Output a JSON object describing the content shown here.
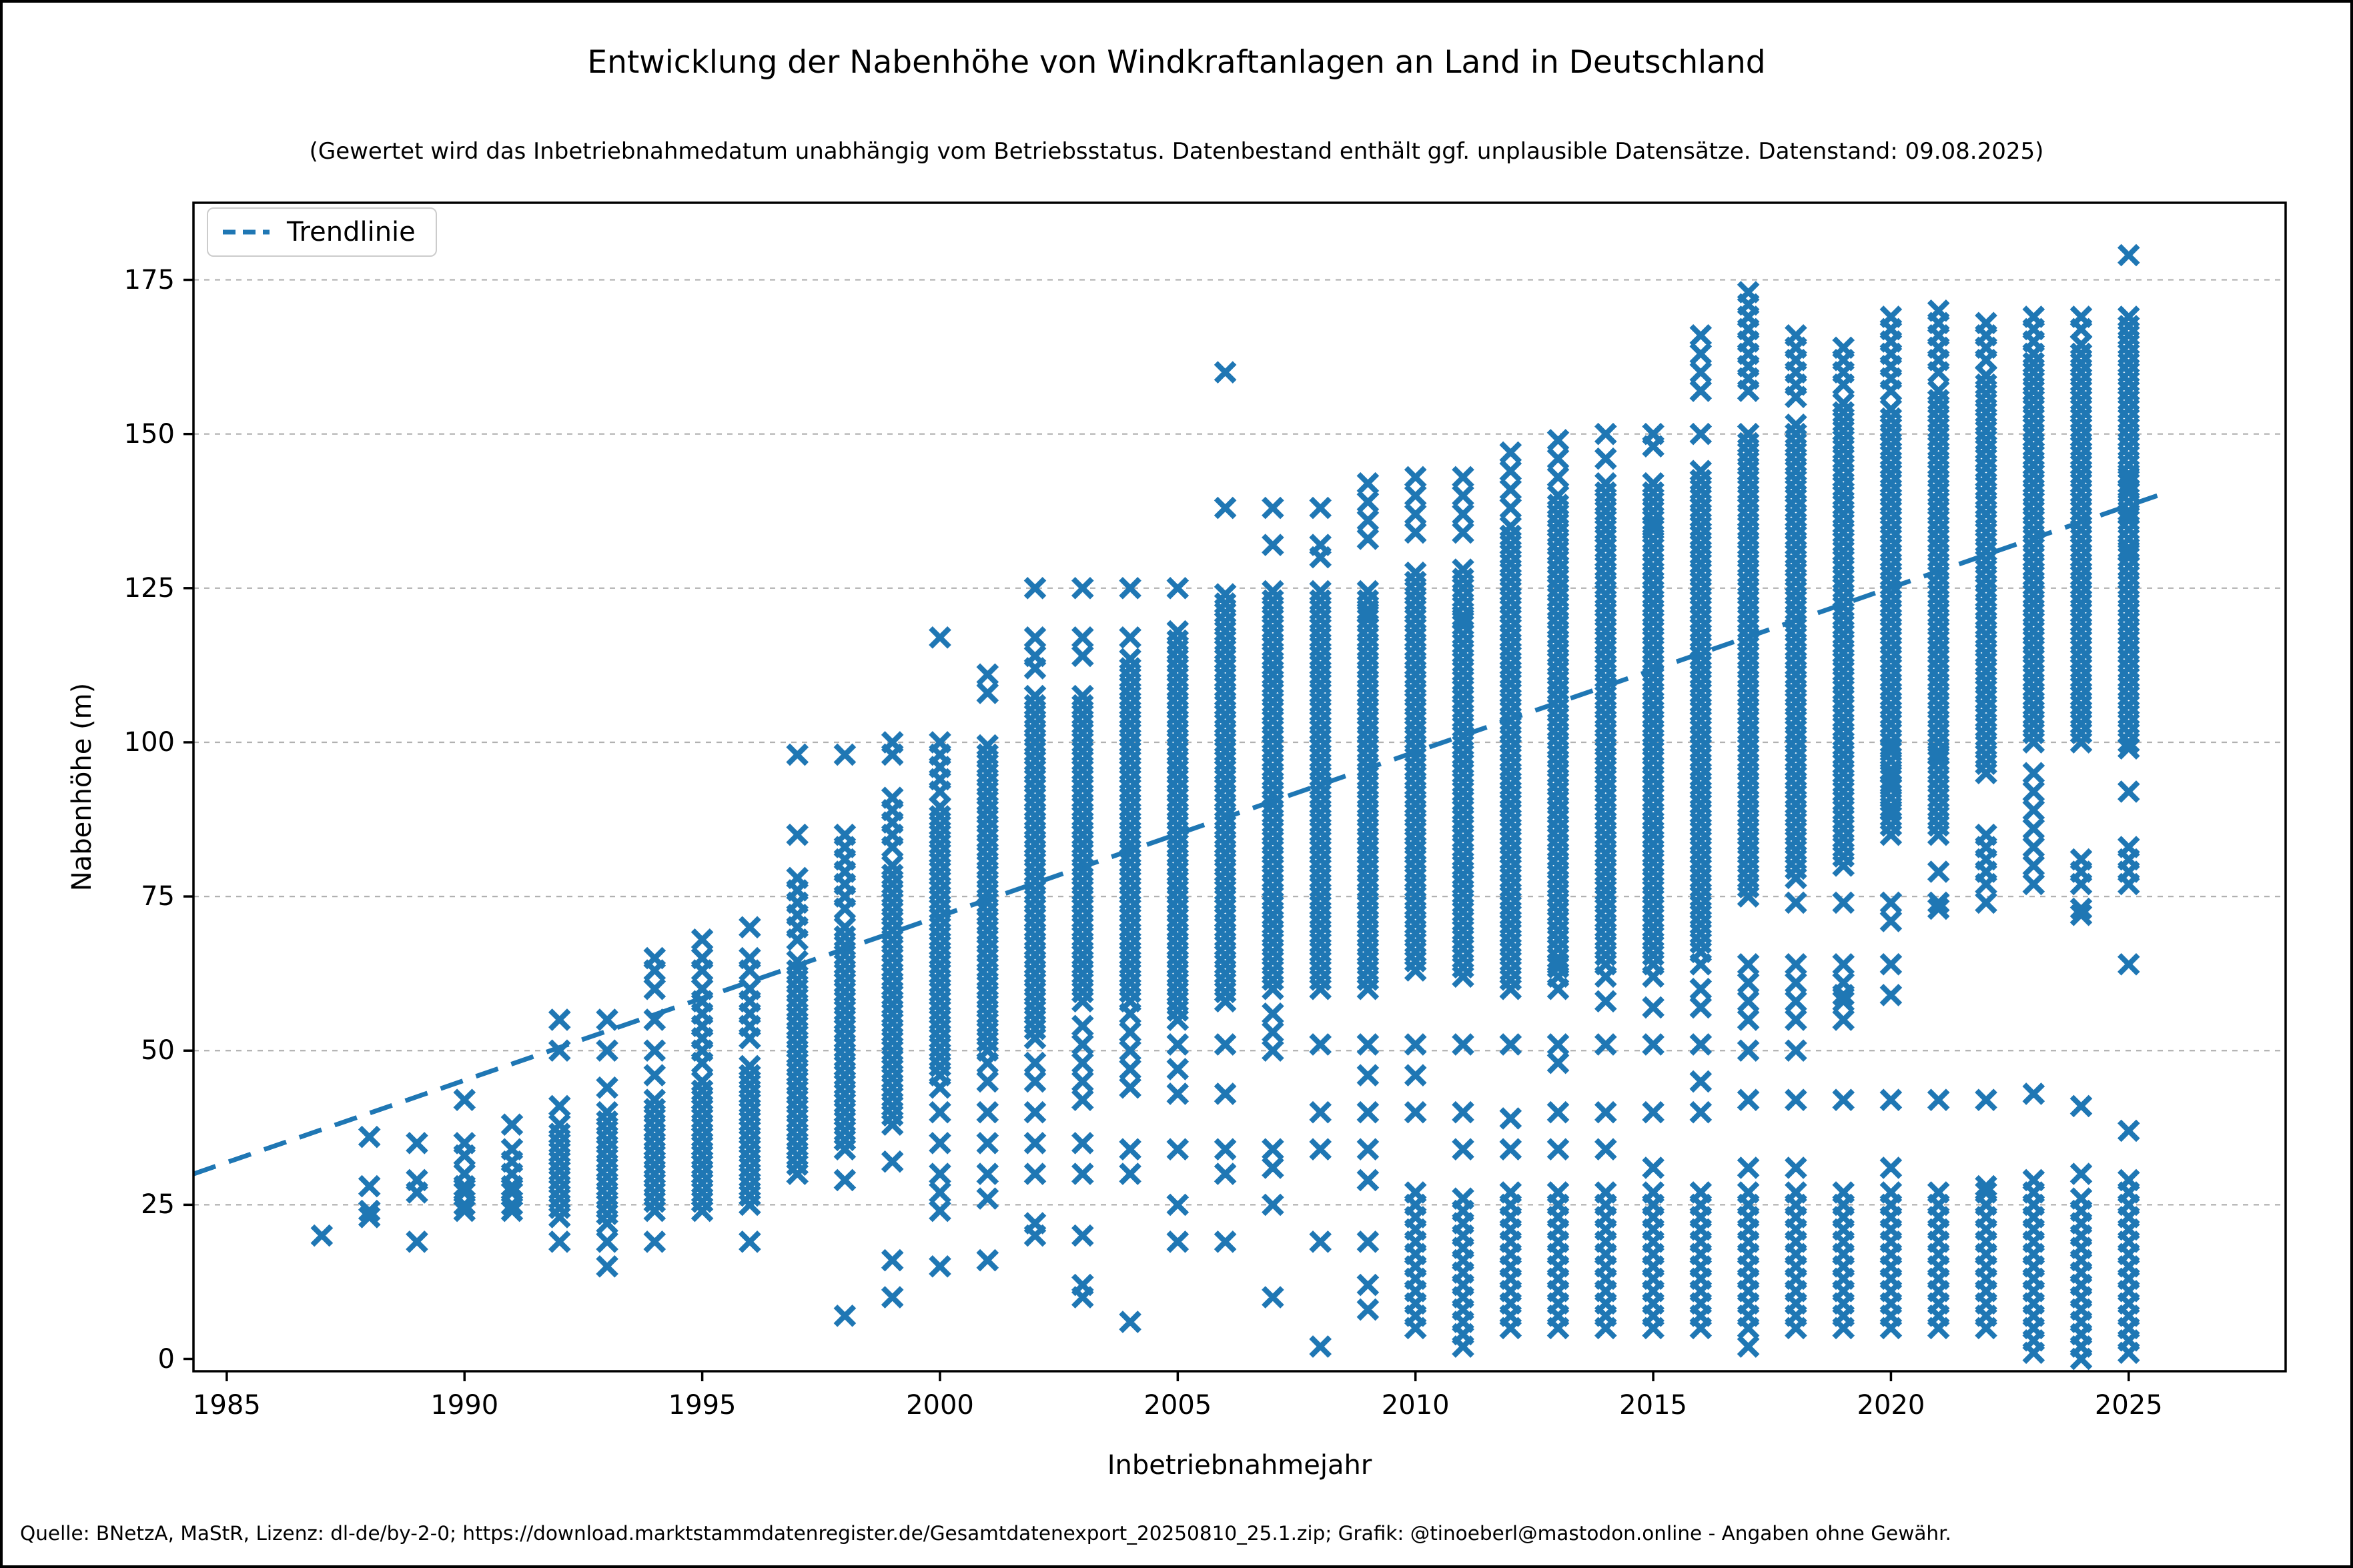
{
  "figure": {
    "title": "Entwicklung der Nabenhöhe von Windkraftanlagen an Land in Deutschland",
    "subtitle": "(Gewertet wird das Inbetriebnahmedatum unabhängig vom Betriebsstatus. Datenbestand enthält ggf. unplausible Datensätze. Datenstand: 09.08.2025)",
    "source_note": "Quelle: BNetzA, MaStR, Lizenz: dl-de/by-2-0; https://download.marktstammdatenregister.de/Gesamtdatenexport_20250810_25.1.zip; Grafik: @tinoeberl@mastodon.online - Angaben ohne Gewähr."
  },
  "colors": {
    "marker": "#1f77b4",
    "trendline": "#1f77b4",
    "grid": "#b1b1b1",
    "spine": "#000000",
    "legend_border": "#cccccc"
  },
  "chart_data": {
    "type": "scatter",
    "title": "Entwicklung der Nabenhöhe von Windkraftanlagen an Land in Deutschland",
    "subtitle": "(Gewertet wird das Inbetriebnahmedatum unabhängig vom Betriebsstatus. Datenbestand enthält ggf. unplausible Datensätze. Datenstand: 09.08.2025)",
    "xlabel": "Inbetriebnahmejahr",
    "ylabel": "Nabenhöhe (m)",
    "xlim": [
      1984.3,
      2028.3
    ],
    "ylim": [
      -2,
      187.5
    ],
    "xticks": [
      1985,
      1990,
      1995,
      2000,
      2005,
      2010,
      2015,
      2020,
      2025
    ],
    "yticks": [
      0,
      25,
      50,
      75,
      100,
      125,
      150,
      175
    ],
    "grid": "horizontal-dashed",
    "marker": {
      "shape": "x",
      "size": 28
    },
    "legend": {
      "position": "upper-left",
      "entries": [
        {
          "label": "Trendlinie",
          "style": "dashed-line"
        }
      ]
    },
    "trendline": {
      "x1": 1984.3,
      "y1": 30.0,
      "x2": 2025.6,
      "y2": 140.0
    },
    "series_note": "dense = [low, high, step] ranges of hub heights (m) forming solid marker columns; points = individual markers",
    "series": [
      {
        "year": 1987,
        "dense": [],
        "points": [
          20
        ]
      },
      {
        "year": 1988,
        "dense": [],
        "points": [
          23,
          24,
          28,
          36
        ]
      },
      {
        "year": 1989,
        "dense": [],
        "points": [
          19,
          27,
          29,
          35
        ]
      },
      {
        "year": 1990,
        "dense": [],
        "points": [
          24,
          25,
          27,
          28,
          30,
          33,
          35,
          42
        ]
      },
      {
        "year": 1991,
        "dense": [],
        "points": [
          24,
          25,
          27,
          28,
          30,
          32,
          34,
          38
        ]
      },
      {
        "year": 1992,
        "dense": [
          [
            23,
            38,
            1.5
          ]
        ],
        "points": [
          19,
          41,
          50,
          55
        ]
      },
      {
        "year": 1993,
        "dense": [
          [
            22,
            40,
            1.5
          ]
        ],
        "points": [
          15,
          19,
          44,
          50,
          55
        ]
      },
      {
        "year": 1994,
        "dense": [
          [
            24,
            42,
            1.5
          ]
        ],
        "points": [
          19,
          46,
          50,
          55,
          60,
          63,
          65
        ]
      },
      {
        "year": 1995,
        "dense": [
          [
            24,
            45,
            1.5
          ],
          [
            48,
            58,
            2
          ]
        ],
        "points": [
          60,
          63,
          65,
          68
        ]
      },
      {
        "year": 1996,
        "dense": [
          [
            25,
            48,
            1.5
          ],
          [
            52,
            60,
            2
          ]
        ],
        "points": [
          19,
          63,
          65,
          70
        ]
      },
      {
        "year": 1997,
        "dense": [
          [
            30,
            65,
            1.5
          ],
          [
            68,
            78,
            2
          ]
        ],
        "points": [
          85,
          98
        ]
      },
      {
        "year": 1998,
        "dense": [
          [
            34,
            70,
            1.5
          ],
          [
            73,
            85,
            2
          ]
        ],
        "points": [
          7,
          29,
          98
        ]
      },
      {
        "year": 1999,
        "dense": [
          [
            38,
            80,
            1.5
          ],
          [
            83,
            92,
            2
          ]
        ],
        "points": [
          10,
          16,
          32,
          98,
          100
        ]
      },
      {
        "year": 2000,
        "dense": [
          [
            46,
            90,
            1.5
          ],
          [
            92,
            100,
            2
          ]
        ],
        "points": [
          15,
          24,
          27,
          30,
          35,
          40,
          44,
          117
        ]
      },
      {
        "year": 2001,
        "dense": [
          [
            50,
            100,
            1.5
          ]
        ],
        "points": [
          16,
          26,
          30,
          35,
          40,
          45,
          48,
          108,
          111
        ]
      },
      {
        "year": 2002,
        "dense": [
          [
            52,
            108,
            1.5
          ]
        ],
        "points": [
          20,
          22,
          30,
          35,
          40,
          45,
          48,
          112,
          114,
          117,
          125
        ]
      },
      {
        "year": 2003,
        "dense": [
          [
            58,
            108,
            1.5
          ],
          [
            42,
            56,
            3
          ]
        ],
        "points": [
          10,
          12,
          20,
          30,
          35,
          114,
          117,
          125
        ]
      },
      {
        "year": 2004,
        "dense": [
          [
            58,
            114,
            1.5
          ],
          [
            44,
            56,
            3
          ]
        ],
        "points": [
          6,
          30,
          34,
          117,
          125
        ]
      },
      {
        "year": 2005,
        "dense": [
          [
            55,
            118,
            1.5
          ]
        ],
        "points": [
          19,
          25,
          34,
          43,
          47,
          51,
          125
        ]
      },
      {
        "year": 2006,
        "dense": [
          [
            58,
            125,
            1.5
          ]
        ],
        "points": [
          19,
          30,
          34,
          43,
          51,
          138,
          160
        ]
      },
      {
        "year": 2007,
        "dense": [
          [
            60,
            125,
            1.5
          ],
          [
            50,
            58,
            3
          ]
        ],
        "points": [
          10,
          25,
          31,
          34,
          132,
          138
        ]
      },
      {
        "year": 2008,
        "dense": [
          [
            60,
            125,
            1.5
          ]
        ],
        "points": [
          2,
          19,
          34,
          40,
          51,
          130,
          132,
          138
        ]
      },
      {
        "year": 2009,
        "dense": [
          [
            60,
            125,
            1.5
          ],
          [
            133,
            142,
            3
          ]
        ],
        "points": [
          8,
          12,
          19,
          29,
          34,
          40,
          46,
          51,
          121
        ]
      },
      {
        "year": 2010,
        "dense": [
          [
            63,
            128,
            1.5
          ],
          [
            134,
            143,
            3
          ],
          [
            5,
            27,
            2
          ]
        ],
        "points": [
          40,
          46,
          51,
          120
        ]
      },
      {
        "year": 2011,
        "dense": [
          [
            62,
            128,
            1.5
          ],
          [
            134,
            143,
            3
          ],
          [
            2,
            27,
            2
          ]
        ],
        "points": [
          34,
          40,
          51,
          120
        ]
      },
      {
        "year": 2012,
        "dense": [
          [
            60,
            135,
            1.5
          ],
          [
            138,
            147,
            3
          ],
          [
            5,
            27,
            2
          ]
        ],
        "points": [
          34,
          39,
          51
        ]
      },
      {
        "year": 2013,
        "dense": [
          [
            62,
            140,
            1.5
          ],
          [
            143,
            150,
            3
          ],
          [
            5,
            27,
            2
          ]
        ],
        "points": [
          34,
          40,
          48,
          51,
          60,
          64
        ]
      },
      {
        "year": 2014,
        "dense": [
          [
            64,
            142,
            1.5
          ],
          [
            5,
            27,
            2
          ]
        ],
        "points": [
          34,
          40,
          51,
          58,
          62,
          146,
          150
        ]
      },
      {
        "year": 2015,
        "dense": [
          [
            64,
            143,
            1.5
          ],
          [
            5,
            27,
            2
          ]
        ],
        "points": [
          31,
          40,
          51,
          57,
          62,
          135,
          148,
          150
        ]
      },
      {
        "year": 2016,
        "dense": [
          [
            66,
            145,
            1.5
          ],
          [
            157,
            166,
            3
          ],
          [
            5,
            27,
            2
          ]
        ],
        "points": [
          40,
          45,
          51,
          57,
          60,
          64,
          150
        ]
      },
      {
        "year": 2017,
        "dense": [
          [
            75,
            150,
            1.5
          ],
          [
            157,
            174,
            2
          ],
          [
            5,
            27,
            2
          ],
          [
            55,
            64,
            3
          ]
        ],
        "points": [
          2,
          31,
          42,
          50
        ]
      },
      {
        "year": 2018,
        "dense": [
          [
            78,
            152,
            1.5
          ],
          [
            156,
            166,
            2
          ],
          [
            5,
            27,
            2
          ],
          [
            55,
            64,
            3
          ]
        ],
        "points": [
          5,
          31,
          42,
          50,
          74
        ]
      },
      {
        "year": 2019,
        "dense": [
          [
            80,
            155,
            1.5
          ],
          [
            158,
            165,
            2
          ],
          [
            5,
            27,
            2
          ],
          [
            55,
            64,
            3
          ]
        ],
        "points": [
          42,
          59,
          74
        ]
      },
      {
        "year": 2020,
        "dense": [
          [
            85,
            155,
            1.5
          ],
          [
            157,
            170,
            2
          ],
          [
            5,
            27,
            2
          ],
          [
            89,
            100,
            2
          ]
        ],
        "points": [
          31,
          42,
          59,
          64,
          71,
          74
        ]
      },
      {
        "year": 2021,
        "dense": [
          [
            85,
            158,
            1.5
          ],
          [
            160,
            170,
            2
          ],
          [
            5,
            27,
            2
          ]
        ],
        "points": [
          42,
          73,
          74,
          79,
          98
        ]
      },
      {
        "year": 2022,
        "dense": [
          [
            95,
            160,
            1.5
          ],
          [
            162,
            169,
            2
          ],
          [
            5,
            27,
            2
          ],
          [
            77,
            86,
            2
          ]
        ],
        "points": [
          28,
          42,
          74
        ]
      },
      {
        "year": 2023,
        "dense": [
          [
            100,
            163,
            1.5
          ],
          [
            165,
            170,
            2
          ],
          [
            1,
            23,
            2
          ],
          [
            25,
            30,
            2
          ],
          [
            77,
            95,
            3
          ]
        ],
        "points": [
          43
        ]
      },
      {
        "year": 2024,
        "dense": [
          [
            100,
            165,
            1.5
          ],
          [
            167,
            170,
            2
          ],
          [
            0,
            27,
            2
          ],
          [
            77,
            81,
            2
          ]
        ],
        "points": [
          30,
          41,
          72,
          73
        ]
      },
      {
        "year": 2025,
        "dense": [
          [
            100,
            170,
            1.5
          ],
          [
            137,
            143,
            2
          ],
          [
            77,
            83,
            2
          ],
          [
            1,
            23,
            2
          ],
          [
            25,
            30,
            2
          ]
        ],
        "points": [
          37,
          64,
          92,
          99,
          131,
          151,
          179
        ]
      }
    ]
  },
  "legend": {
    "trend_label": "Trendlinie"
  }
}
